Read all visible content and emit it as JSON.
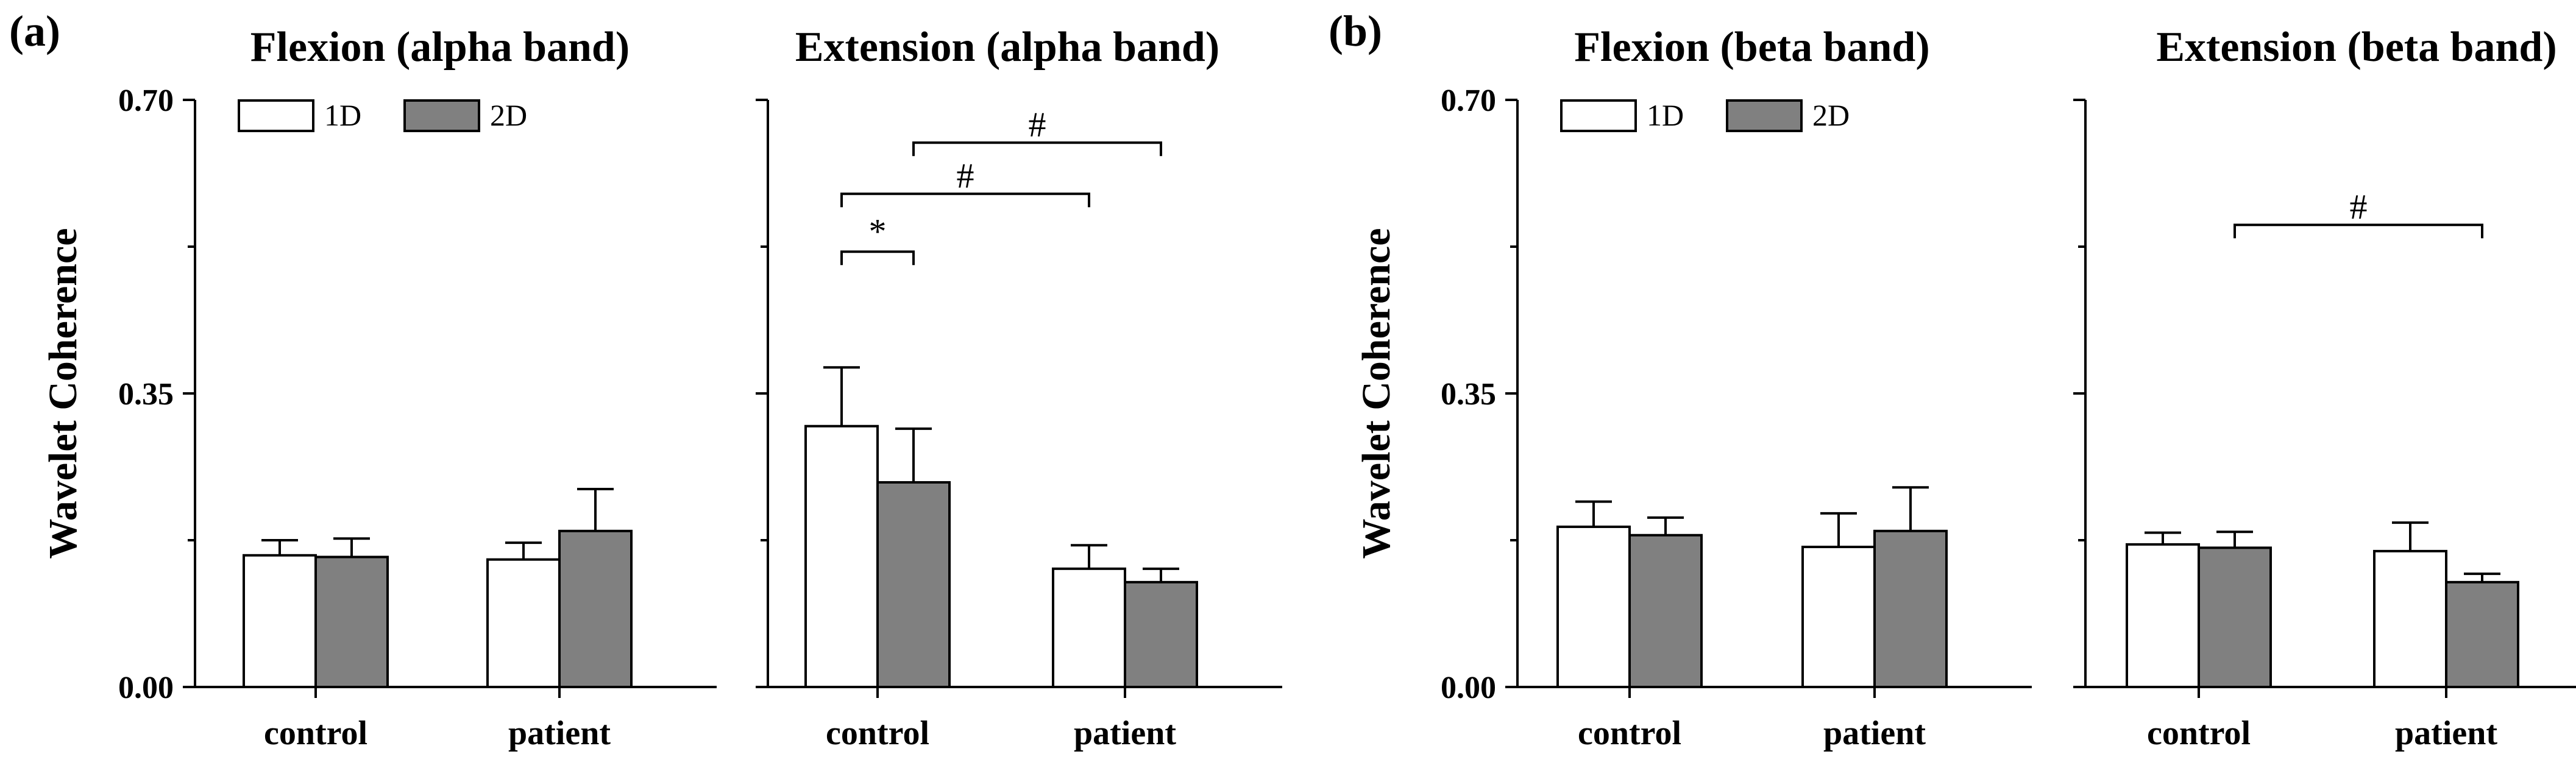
{
  "colors": {
    "bar_1d": "#ffffff",
    "bar_2d": "#808080",
    "axis": "#000000"
  },
  "panel_labels": [
    "(a)",
    "(b)"
  ],
  "chart_data": [
    {
      "type": "bar",
      "title": "Flexion (alpha band)",
      "ylabel": "Wavelet Coherence",
      "yticks": [
        "0.00",
        "0.35",
        "0.70"
      ],
      "ylim": [
        0,
        0.7
      ],
      "categories": [
        "control",
        "patient"
      ],
      "series": [
        {
          "name": "1D",
          "values": [
            0.157,
            0.152
          ],
          "errors": [
            0.018,
            0.02
          ]
        },
        {
          "name": "2D",
          "values": [
            0.155,
            0.186
          ],
          "errors": [
            0.022,
            0.05
          ]
        }
      ],
      "legend": [
        "1D",
        "2D"
      ],
      "significance": []
    },
    {
      "type": "bar",
      "title": "Extension (alpha band)",
      "ylim": [
        0,
        0.7
      ],
      "categories": [
        "control",
        "patient"
      ],
      "series": [
        {
          "name": "1D",
          "values": [
            0.311,
            0.141
          ],
          "errors": [
            0.07,
            0.028
          ]
        },
        {
          "name": "2D",
          "values": [
            0.244,
            0.125
          ],
          "errors": [
            0.064,
            0.016
          ]
        }
      ],
      "significance": [
        {
          "label": "*",
          "from": [
            0,
            0
          ],
          "to": [
            0,
            1
          ],
          "level": 0.519
        },
        {
          "label": "#",
          "from": [
            0,
            0
          ],
          "to": [
            1,
            0
          ],
          "level": 0.588
        },
        {
          "label": "#",
          "from": [
            0,
            1
          ],
          "to": [
            1,
            1
          ],
          "level": 0.649
        }
      ]
    },
    {
      "type": "bar",
      "title": "Flexion (beta band)",
      "ylabel": "Wavelet Coherence",
      "yticks": [
        "0.00",
        "0.35",
        "0.70"
      ],
      "ylim": [
        0,
        0.7
      ],
      "categories": [
        "control",
        "patient"
      ],
      "series": [
        {
          "name": "1D",
          "values": [
            0.191,
            0.167
          ],
          "errors": [
            0.03,
            0.04
          ]
        },
        {
          "name": "2D",
          "values": [
            0.181,
            0.186
          ],
          "errors": [
            0.021,
            0.052
          ]
        }
      ],
      "legend": [
        "1D",
        "2D"
      ],
      "significance": []
    },
    {
      "type": "bar",
      "title": "Extension (beta band)",
      "ylim": [
        0,
        0.7
      ],
      "categories": [
        "control",
        "patient"
      ],
      "series": [
        {
          "name": "1D",
          "values": [
            0.17,
            0.162
          ],
          "errors": [
            0.014,
            0.034
          ]
        },
        {
          "name": "2D",
          "values": [
            0.166,
            0.125
          ],
          "errors": [
            0.019,
            0.01
          ]
        }
      ],
      "significance": [
        {
          "label": "#",
          "from": [
            0,
            1
          ],
          "to": [
            1,
            1
          ],
          "level": 0.551
        }
      ]
    }
  ]
}
